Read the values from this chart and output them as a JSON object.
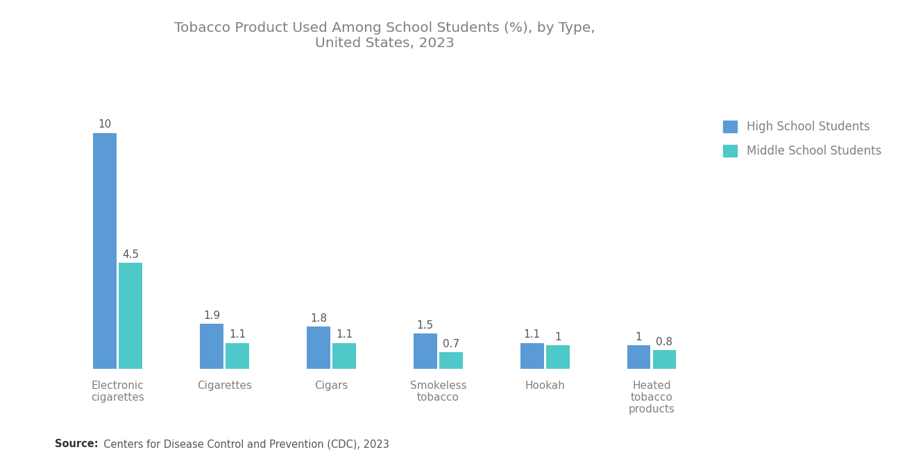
{
  "title": "Tobacco Product Used Among School Students (%), by Type,\nUnited States, 2023",
  "categories": [
    "Electronic\ncigarettes",
    "Cigarettes",
    "Cigars",
    "Smokeless\ntobacco",
    "Hookah",
    "Heated\ntobacco\nproducts"
  ],
  "high_school": [
    10,
    1.9,
    1.8,
    1.5,
    1.1,
    1.0
  ],
  "middle_school": [
    4.5,
    1.1,
    1.1,
    0.7,
    1.0,
    0.8
  ],
  "high_school_label_vals": [
    "10",
    "1.9",
    "1.8",
    "1.5",
    "1.1",
    "1"
  ],
  "middle_school_label_vals": [
    "4.5",
    "1.1",
    "1.1",
    "0.7",
    "1",
    "0.8"
  ],
  "high_school_color": "#5b9bd5",
  "middle_school_color": "#4ec8c8",
  "high_school_label": "High School Students",
  "middle_school_label": "Middle School Students",
  "source_bold": "Source:",
  "source_rest": "  Centers for Disease Control and Prevention (CDC), 2023",
  "background_color": "#ffffff",
  "title_color": "#808080",
  "label_color": "#808080",
  "val_label_color": "#555555",
  "bar_width": 0.22,
  "bar_gap": 0.02,
  "ylim": [
    0,
    12.5
  ],
  "title_fontsize": 14.5,
  "tick_fontsize": 11,
  "val_fontsize": 11,
  "legend_fontsize": 12,
  "source_fontsize": 10.5
}
